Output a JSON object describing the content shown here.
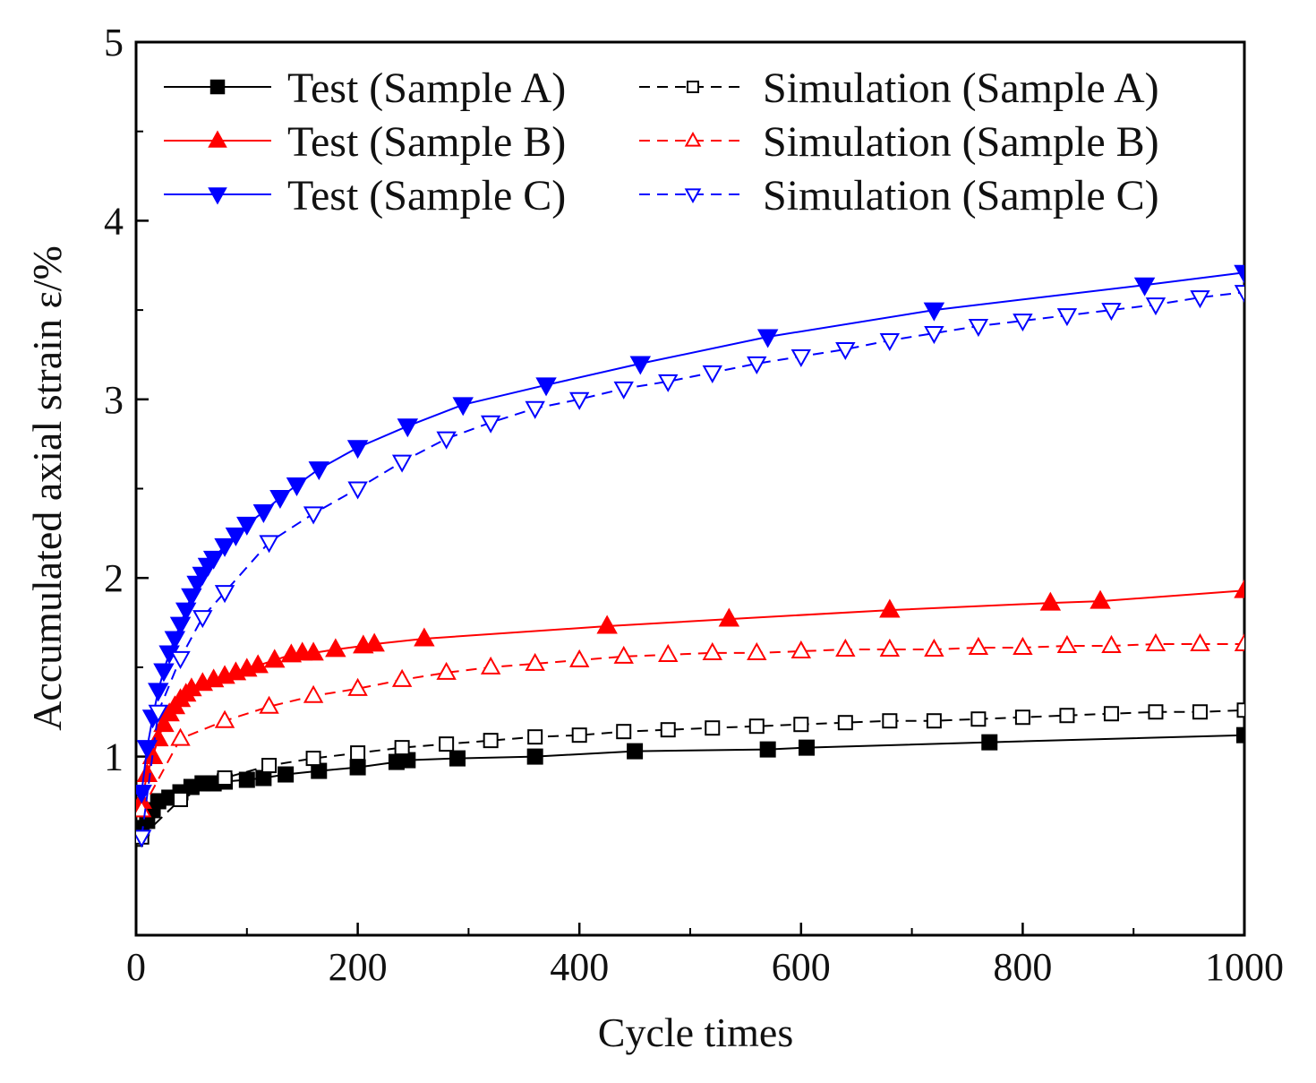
{
  "chart_data": {
    "type": "line",
    "title": "",
    "xlabel": "Cycle times",
    "ylabel": "Accumulated axial strain ε/%",
    "xlim": [
      0,
      1000
    ],
    "ylim": [
      0,
      5
    ],
    "x_ticks": [
      "0",
      "200",
      "400",
      "600",
      "800",
      "1000"
    ],
    "y_ticks": [
      "1",
      "2",
      "3",
      "4",
      "5"
    ],
    "grid": false,
    "legend_position": "top",
    "series": [
      {
        "name": "Test (Sample A)",
        "color": "#000000",
        "line": "solid",
        "marker": "square",
        "filled": true,
        "x": [
          5,
          10,
          15,
          20,
          30,
          40,
          50,
          60,
          70,
          80,
          100,
          115,
          135,
          165,
          200,
          235,
          245,
          290,
          360,
          450,
          570,
          605,
          770,
          1000
        ],
        "y": [
          0.6,
          0.64,
          0.7,
          0.75,
          0.77,
          0.8,
          0.83,
          0.85,
          0.85,
          0.86,
          0.87,
          0.88,
          0.9,
          0.92,
          0.94,
          0.97,
          0.98,
          0.99,
          1.0,
          1.03,
          1.04,
          1.05,
          1.08,
          1.12
        ]
      },
      {
        "name": "Simulation (Sample A)",
        "color": "#000000",
        "line": "dashed",
        "marker": "square",
        "filled": false,
        "x": [
          5,
          40,
          80,
          120,
          160,
          200,
          240,
          280,
          320,
          360,
          400,
          440,
          480,
          520,
          560,
          600,
          640,
          680,
          720,
          760,
          800,
          840,
          880,
          920,
          960,
          1000
        ],
        "y": [
          0.55,
          0.76,
          0.88,
          0.95,
          0.99,
          1.02,
          1.05,
          1.07,
          1.09,
          1.11,
          1.12,
          1.14,
          1.15,
          1.16,
          1.17,
          1.18,
          1.19,
          1.2,
          1.2,
          1.21,
          1.22,
          1.23,
          1.24,
          1.25,
          1.25,
          1.26
        ]
      },
      {
        "name": "Test (Sample B)",
        "color": "#ff0000",
        "line": "solid",
        "marker": "triangle-up",
        "filled": true,
        "x": [
          5,
          10,
          15,
          20,
          25,
          30,
          35,
          40,
          45,
          50,
          60,
          70,
          80,
          90,
          100,
          110,
          125,
          140,
          150,
          160,
          180,
          205,
          215,
          260,
          425,
          535,
          680,
          825,
          870,
          1000
        ],
        "y": [
          0.75,
          0.9,
          1.0,
          1.1,
          1.18,
          1.24,
          1.28,
          1.32,
          1.35,
          1.38,
          1.41,
          1.43,
          1.45,
          1.47,
          1.49,
          1.51,
          1.54,
          1.57,
          1.58,
          1.58,
          1.6,
          1.62,
          1.63,
          1.66,
          1.73,
          1.77,
          1.82,
          1.86,
          1.87,
          1.93
        ]
      },
      {
        "name": "Simulation (Sample B)",
        "color": "#ff0000",
        "line": "dashed",
        "marker": "triangle-up",
        "filled": false,
        "x": [
          5,
          40,
          80,
          120,
          160,
          200,
          240,
          280,
          320,
          360,
          400,
          440,
          480,
          520,
          560,
          600,
          640,
          680,
          720,
          760,
          800,
          840,
          880,
          920,
          960,
          1000
        ],
        "y": [
          0.7,
          1.1,
          1.2,
          1.28,
          1.34,
          1.38,
          1.43,
          1.47,
          1.5,
          1.52,
          1.54,
          1.56,
          1.57,
          1.58,
          1.58,
          1.59,
          1.6,
          1.6,
          1.6,
          1.61,
          1.61,
          1.62,
          1.62,
          1.63,
          1.63,
          1.63
        ]
      },
      {
        "name": "Test (Sample C)",
        "color": "#0000ff",
        "line": "solid",
        "marker": "triangle-down",
        "filled": true,
        "x": [
          5,
          10,
          15,
          20,
          25,
          30,
          35,
          40,
          45,
          50,
          55,
          60,
          65,
          70,
          80,
          90,
          100,
          115,
          130,
          145,
          165,
          200,
          245,
          295,
          370,
          455,
          570,
          720,
          910,
          1000
        ],
        "y": [
          0.8,
          1.05,
          1.22,
          1.37,
          1.48,
          1.58,
          1.66,
          1.74,
          1.82,
          1.9,
          1.97,
          2.02,
          2.07,
          2.11,
          2.18,
          2.24,
          2.3,
          2.37,
          2.45,
          2.52,
          2.61,
          2.73,
          2.85,
          2.97,
          3.08,
          3.2,
          3.35,
          3.5,
          3.64,
          3.71
        ]
      },
      {
        "name": "Simulation (Sample C)",
        "color": "#0000ff",
        "line": "dashed",
        "marker": "triangle-down",
        "filled": false,
        "x": [
          5,
          20,
          40,
          60,
          80,
          120,
          160,
          200,
          240,
          280,
          320,
          360,
          400,
          440,
          480,
          520,
          560,
          600,
          640,
          680,
          720,
          760,
          800,
          840,
          880,
          920,
          960,
          1000
        ],
        "y": [
          0.55,
          1.25,
          1.55,
          1.78,
          1.92,
          2.2,
          2.36,
          2.5,
          2.65,
          2.78,
          2.87,
          2.95,
          3.0,
          3.06,
          3.1,
          3.15,
          3.2,
          3.24,
          3.28,
          3.33,
          3.37,
          3.41,
          3.44,
          3.47,
          3.5,
          3.53,
          3.57,
          3.6
        ]
      }
    ]
  }
}
